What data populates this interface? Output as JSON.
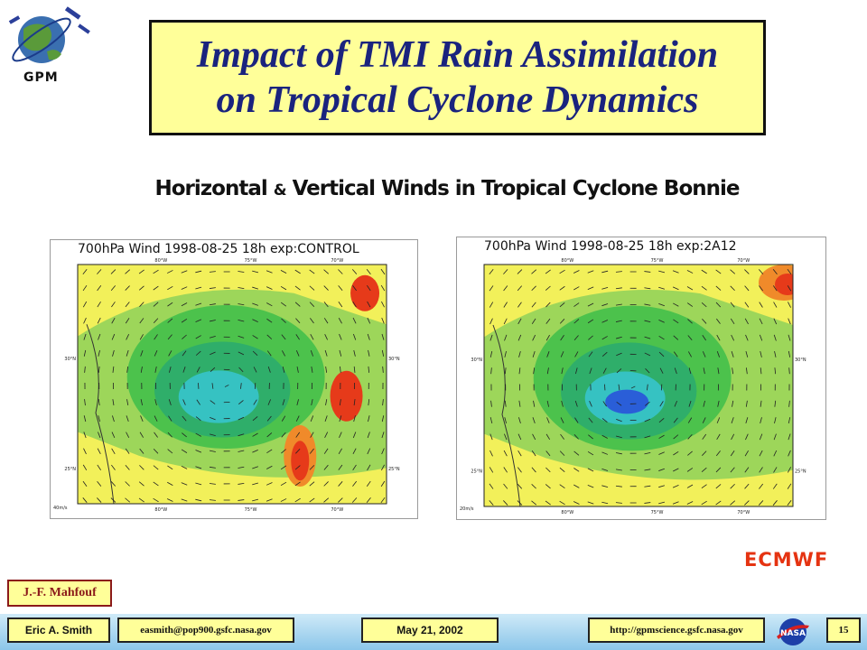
{
  "logo": {
    "label": "GPM"
  },
  "title": {
    "line1": "Impact of TMI Rain Assimilation",
    "line2": "on Tropical Cyclone Dynamics"
  },
  "subtitle": {
    "part1": "Horizontal ",
    "amp": "&",
    "part2": " Vertical Winds in Tropical Cyclone Bonnie"
  },
  "maps": [
    {
      "title": "700hPa Wind 1998-08-25 18h exp:CONTROL",
      "lon_labels": [
        "80°W",
        "75°W",
        "70°W"
      ],
      "lat_labels_left": [
        "30°N",
        "25°N"
      ],
      "lat_labels_right": [
        "30°N",
        "25°N"
      ],
      "scale": "40m/s"
    },
    {
      "title": "700hPa Wind 1998-08-25 18h exp:2A12",
      "lon_labels": [
        "80°W",
        "75°W",
        "70°W"
      ],
      "lat_labels_left": [
        "30°N",
        "25°N"
      ],
      "lat_labels_right": [
        "30°N",
        "25°N"
      ],
      "scale": "20m/s"
    }
  ],
  "source_label": "ECMWF",
  "author": "J.-F. Mahfouf",
  "footer": {
    "presenter": "Eric A. Smith",
    "email": "easmith@pop900.gsfc.nasa.gov",
    "date": "May 21, 2002",
    "url": "http://gpmscience.gsfc.nasa.gov",
    "page": "15"
  },
  "colors": {
    "title_bg": "#ffff99",
    "title_text": "#1a237e",
    "ecmwf": "#e53311",
    "author_text": "#8b1a1a"
  }
}
